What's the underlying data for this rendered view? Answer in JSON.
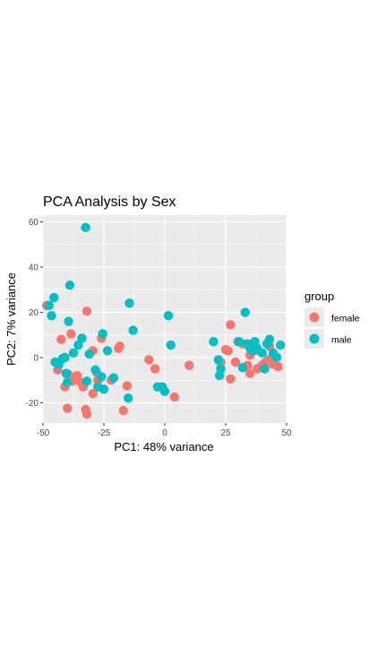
{
  "chart_data": {
    "type": "scatter",
    "title": "PCA Analysis by Sex",
    "xlabel": "PC1: 48% variance",
    "ylabel": "PC2: 7% variance",
    "xlim": [
      -50,
      50
    ],
    "ylim": [
      -29,
      63
    ],
    "xticks": [
      -50,
      -25,
      0,
      25,
      50
    ],
    "xtick_labels": [
      "-50",
      "-25",
      "0",
      "25",
      "50"
    ],
    "yticks": [
      -20,
      0,
      20,
      40,
      60
    ],
    "ytick_labels": [
      "-20",
      "0",
      "20",
      "40",
      "60"
    ],
    "grid": true,
    "legend": {
      "title": "group",
      "position": "right"
    },
    "colors": {
      "female": "#F8766D",
      "male": "#00BFC4",
      "panel": "#EBEBEB",
      "grid": "#ffffff"
    },
    "series": [
      {
        "name": "female",
        "color": "#F8766D",
        "points": [
          [
            -48.5,
            23
          ],
          [
            -44,
            -5.5
          ],
          [
            -42.5,
            8
          ],
          [
            -41,
            -13
          ],
          [
            -40,
            -22.5
          ],
          [
            -39.5,
            -7.5
          ],
          [
            -38.5,
            10.5
          ],
          [
            -38,
            -10.5
          ],
          [
            -36,
            -8
          ],
          [
            -34.5,
            -11
          ],
          [
            -33.5,
            -13
          ],
          [
            -32.5,
            -23
          ],
          [
            -32,
            -25
          ],
          [
            -32,
            20.5
          ],
          [
            -29.5,
            -16
          ],
          [
            -29.5,
            3
          ],
          [
            -28,
            -6.5
          ],
          [
            -27.5,
            -10
          ],
          [
            -26,
            8.5
          ],
          [
            -22,
            -10
          ],
          [
            -19,
            4
          ],
          [
            -18.5,
            5
          ],
          [
            -17,
            -23.5
          ],
          [
            -15.5,
            -12.5
          ],
          [
            -6.5,
            -1
          ],
          [
            -4,
            -5
          ],
          [
            4,
            -17.5
          ],
          [
            10,
            -3.5
          ],
          [
            23,
            -2
          ],
          [
            25,
            3.5
          ],
          [
            26,
            3
          ],
          [
            27,
            14.5
          ],
          [
            27,
            -9.5
          ],
          [
            29,
            -2
          ],
          [
            30,
            7
          ],
          [
            32,
            6
          ],
          [
            34,
            -3.5
          ],
          [
            35,
            1
          ],
          [
            35,
            -7
          ],
          [
            37,
            3
          ],
          [
            38,
            -5
          ],
          [
            39.5,
            -4
          ],
          [
            40.5,
            -3
          ],
          [
            41.5,
            -2
          ],
          [
            42.5,
            -1
          ],
          [
            43,
            5
          ],
          [
            44.5,
            -3
          ],
          [
            46.5,
            -4
          ]
        ]
      },
      {
        "name": "male",
        "color": "#00BFC4",
        "points": [
          [
            -47.5,
            23
          ],
          [
            -46.5,
            18.5
          ],
          [
            -45.5,
            26.5
          ],
          [
            -45,
            -2
          ],
          [
            -43.5,
            -3
          ],
          [
            -42,
            -0.5
          ],
          [
            -41,
            0
          ],
          [
            -40.5,
            -7
          ],
          [
            -40,
            -11
          ],
          [
            -39.5,
            16
          ],
          [
            -39,
            32
          ],
          [
            -37.5,
            2
          ],
          [
            -35.5,
            5.5
          ],
          [
            -34,
            8.5
          ],
          [
            -32.5,
            57.5
          ],
          [
            -32,
            -10.5
          ],
          [
            -31,
            1.5
          ],
          [
            -28.5,
            -5.5
          ],
          [
            -27.5,
            -13
          ],
          [
            -26,
            -8.5
          ],
          [
            -25.5,
            10.5
          ],
          [
            -25,
            -14
          ],
          [
            -23.5,
            3
          ],
          [
            -21,
            -9
          ],
          [
            -15,
            -18
          ],
          [
            -14.5,
            24
          ],
          [
            -13,
            12
          ],
          [
            -3,
            -13
          ],
          [
            -1,
            -13
          ],
          [
            0,
            -15
          ],
          [
            1.5,
            18.5
          ],
          [
            2.5,
            5.5
          ],
          [
            20,
            7
          ],
          [
            22,
            -1
          ],
          [
            22.5,
            -8
          ],
          [
            23,
            -5
          ],
          [
            30.5,
            7
          ],
          [
            32,
            -4.5
          ],
          [
            33,
            20
          ],
          [
            34,
            6
          ],
          [
            35,
            4
          ],
          [
            36,
            3
          ],
          [
            37,
            7
          ],
          [
            38,
            4
          ],
          [
            40,
            2
          ],
          [
            41,
            -5
          ],
          [
            42,
            6
          ],
          [
            43,
            8
          ],
          [
            44.5,
            2
          ],
          [
            46,
            0
          ],
          [
            47.5,
            5.5
          ]
        ]
      }
    ]
  }
}
